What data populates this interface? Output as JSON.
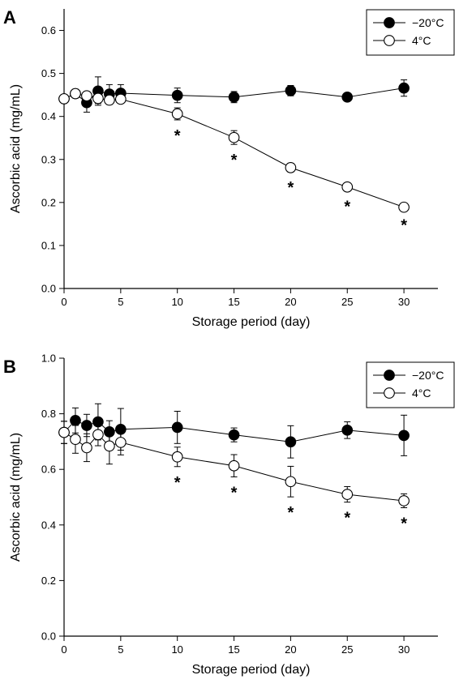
{
  "chart_data": [
    {
      "panel_label": "A",
      "type": "line",
      "xlabel": "Storage period (day)",
      "ylabel": "Ascorbic acid (mg/mL)",
      "xlim": [
        0,
        33
      ],
      "ylim": [
        0,
        0.65
      ],
      "x_ticks": [
        "0",
        "5",
        "10",
        "15",
        "20",
        "25",
        "30"
      ],
      "y_ticks": [
        "0.0",
        "0.1",
        "0.2",
        "0.3",
        "0.4",
        "0.5",
        "0.6"
      ],
      "legend_position": "top-right",
      "x": [
        0,
        1,
        2,
        3,
        4,
        5,
        10,
        15,
        20,
        25,
        30
      ],
      "series": [
        {
          "name": "−20°C",
          "marker": "filled-circle",
          "values": [
            0.441,
            0.453,
            0.432,
            0.459,
            0.452,
            0.454,
            0.449,
            0.445,
            0.46,
            0.445,
            0.466
          ],
          "errors": [
            0.008,
            0.01,
            0.022,
            0.033,
            0.022,
            0.02,
            0.017,
            0.013,
            0.012,
            0.006,
            0.019
          ]
        },
        {
          "name": "4°C",
          "marker": "open-circle",
          "values": [
            0.441,
            0.453,
            0.448,
            0.442,
            0.438,
            0.44,
            0.406,
            0.351,
            0.281,
            0.236,
            0.189
          ],
          "errors": [
            0.008,
            0.01,
            0.008,
            0.012,
            0.01,
            0.009,
            0.014,
            0.016,
            0.01,
            0.009,
            0.005
          ]
        }
      ],
      "significance_marker": "*",
      "significant_x": [
        10,
        15,
        20,
        25,
        30
      ]
    },
    {
      "panel_label": "B",
      "type": "line",
      "xlabel": "Storage period (day)",
      "ylabel": "Ascorbic acid (mg/mL)",
      "xlim": [
        0,
        33
      ],
      "ylim": [
        0,
        1.0
      ],
      "x_ticks": [
        "0",
        "5",
        "10",
        "15",
        "20",
        "25",
        "30"
      ],
      "y_ticks": [
        "0.0",
        "0.2",
        "0.4",
        "0.6",
        "0.8",
        "1.0"
      ],
      "legend_position": "top-right",
      "x": [
        0,
        1,
        2,
        3,
        4,
        5,
        10,
        15,
        20,
        25,
        30
      ],
      "series": [
        {
          "name": "−20°C",
          "marker": "filled-circle",
          "values": [
            0.733,
            0.776,
            0.758,
            0.771,
            0.735,
            0.744,
            0.751,
            0.724,
            0.699,
            0.741,
            0.722
          ],
          "errors": [
            0.04,
            0.045,
            0.04,
            0.065,
            0.04,
            0.075,
            0.058,
            0.025,
            0.058,
            0.03,
            0.073
          ]
        },
        {
          "name": "4°C",
          "marker": "open-circle",
          "values": [
            0.733,
            0.708,
            0.678,
            0.725,
            0.684,
            0.697,
            0.645,
            0.613,
            0.556,
            0.51,
            0.487
          ],
          "errors": [
            0.04,
            0.05,
            0.05,
            0.04,
            0.065,
            0.045,
            0.035,
            0.04,
            0.055,
            0.028,
            0.025
          ]
        }
      ],
      "significance_marker": "*",
      "significant_x": [
        10,
        15,
        20,
        25,
        30
      ]
    }
  ]
}
